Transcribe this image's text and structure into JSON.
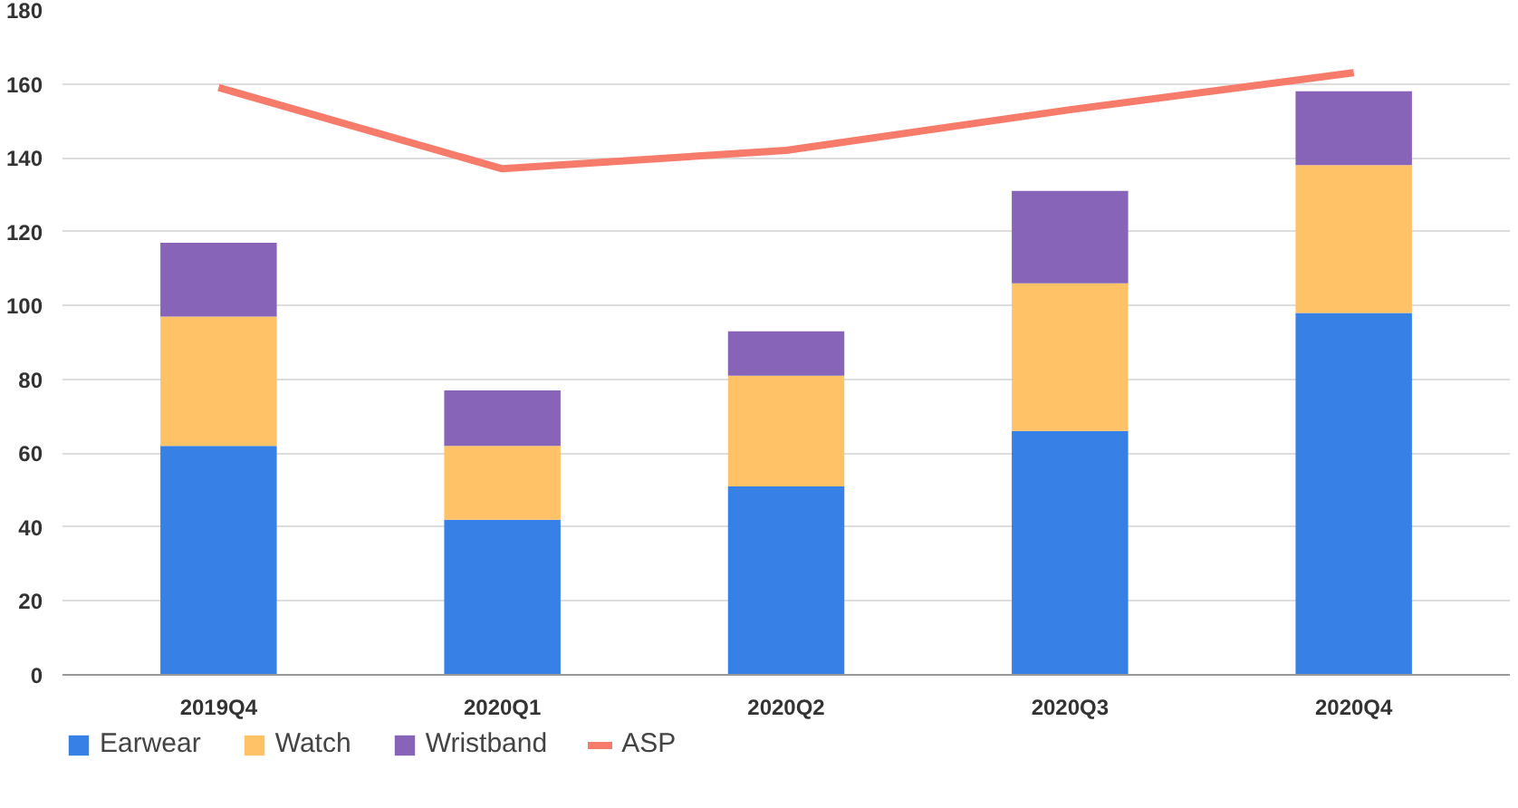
{
  "chart_data": {
    "type": "bar",
    "stacked": true,
    "categories": [
      "2019Q4",
      "2020Q1",
      "2020Q2",
      "2020Q3",
      "2020Q4"
    ],
    "series": [
      {
        "name": "Earwear",
        "color": "#3780e6",
        "values": [
          62,
          42,
          51,
          66,
          98
        ]
      },
      {
        "name": "Watch",
        "color": "#ffc266",
        "values": [
          35,
          20,
          30,
          40,
          40
        ]
      },
      {
        "name": "Wristband",
        "color": "#8764b8",
        "values": [
          20,
          15,
          12,
          25,
          20
        ]
      },
      {
        "name": "ASP",
        "type": "line",
        "color": "#f77b6b",
        "values": [
          159,
          137,
          142,
          153,
          163
        ]
      }
    ],
    "ylim": [
      0,
      180
    ],
    "yticks": [
      0,
      20,
      40,
      60,
      80,
      100,
      120,
      140,
      160,
      180
    ],
    "grid": "y",
    "legend": "bottom"
  }
}
